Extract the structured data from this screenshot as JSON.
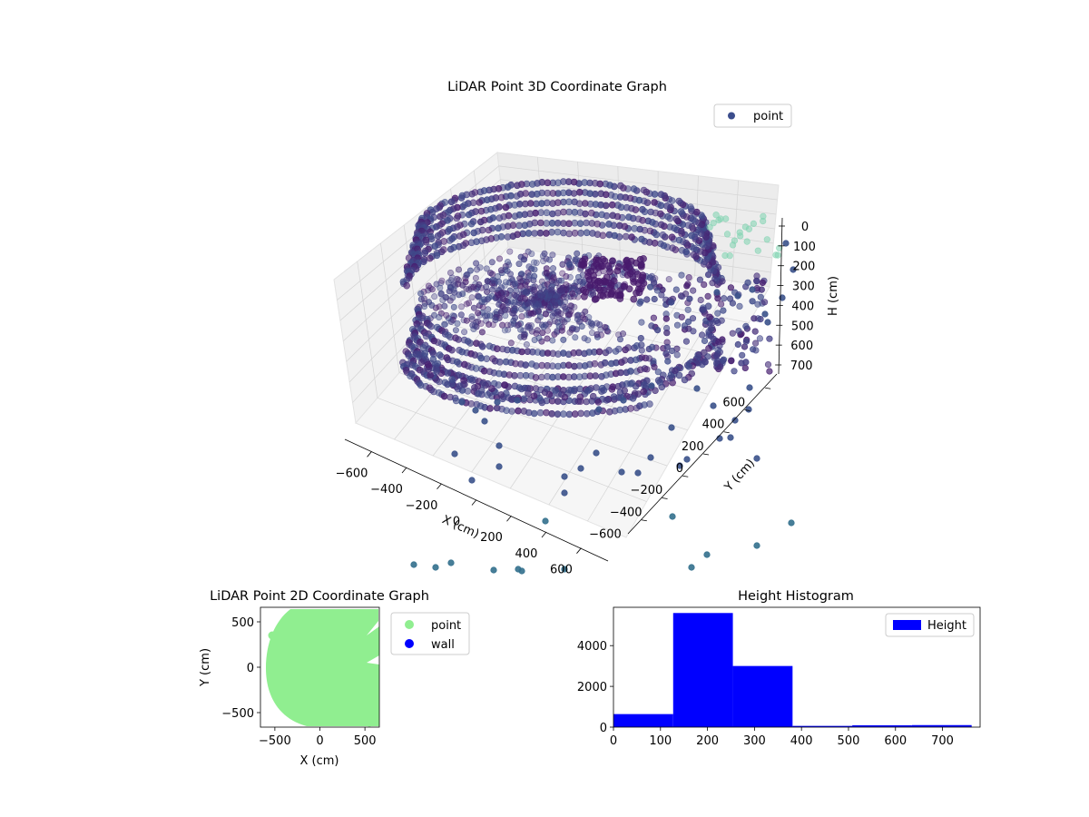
{
  "colors": {
    "point_3d": "#3b4d8c",
    "point_2d": "#90ee90",
    "wall": "#0000ff",
    "hist": "#0000ff",
    "pane": "#f2f2f2",
    "grid": "#d2d2d2"
  },
  "chart_data": [
    {
      "type": "scatter",
      "projection": "3d",
      "title": "LiDAR Point 3D Coordinate Graph",
      "xlabel": "X (cm)",
      "ylabel": "Y (cm)",
      "zlabel": "H (cm)",
      "xticks": [
        "−600",
        "−400",
        "−200",
        "0",
        "200",
        "400",
        "600"
      ],
      "yticks": [
        "−600",
        "−400",
        "−200",
        "0",
        "200",
        "400",
        "600"
      ],
      "zticks": [
        "0",
        "100",
        "200",
        "300",
        "400",
        "500",
        "600",
        "700"
      ],
      "xlim": [
        -650,
        650
      ],
      "ylim": [
        -650,
        650
      ],
      "zlim": [
        0,
        760
      ],
      "z_inverted": true,
      "grid": true,
      "legend": {
        "position": "top-right",
        "entries": [
          "point"
        ]
      },
      "series": [
        {
          "name": "point"
        }
      ]
    },
    {
      "type": "scatter",
      "title": "LiDAR Point 2D Coordinate Graph",
      "xlabel": "X (cm)",
      "ylabel": "Y (cm)",
      "xticks": [
        "−500",
        "0",
        "500"
      ],
      "yticks": [
        "−500",
        "0",
        "500"
      ],
      "xlim": [
        -660,
        660
      ],
      "ylim": [
        -660,
        660
      ],
      "legend": {
        "position": "outside-right",
        "entries": [
          "point",
          "wall"
        ]
      },
      "series": [
        {
          "name": "point"
        },
        {
          "name": "wall"
        }
      ]
    },
    {
      "type": "bar",
      "title": "Height Histogram",
      "xlabel": "",
      "ylabel": "",
      "xticks": [
        "0",
        "100",
        "200",
        "300",
        "400",
        "500",
        "600",
        "700"
      ],
      "yticks": [
        "0",
        "2000",
        "4000"
      ],
      "xlim": [
        0,
        780
      ],
      "ylim": [
        0,
        5880
      ],
      "bins": [
        [
          0,
          127
        ],
        [
          127,
          254
        ],
        [
          254,
          381
        ],
        [
          381,
          508
        ],
        [
          508,
          635
        ],
        [
          635,
          762
        ]
      ],
      "values": [
        640,
        5600,
        3000,
        60,
        90,
        100
      ],
      "legend": {
        "position": "top-right",
        "entries": [
          "Height"
        ]
      },
      "series": [
        {
          "name": "Height"
        }
      ]
    }
  ]
}
